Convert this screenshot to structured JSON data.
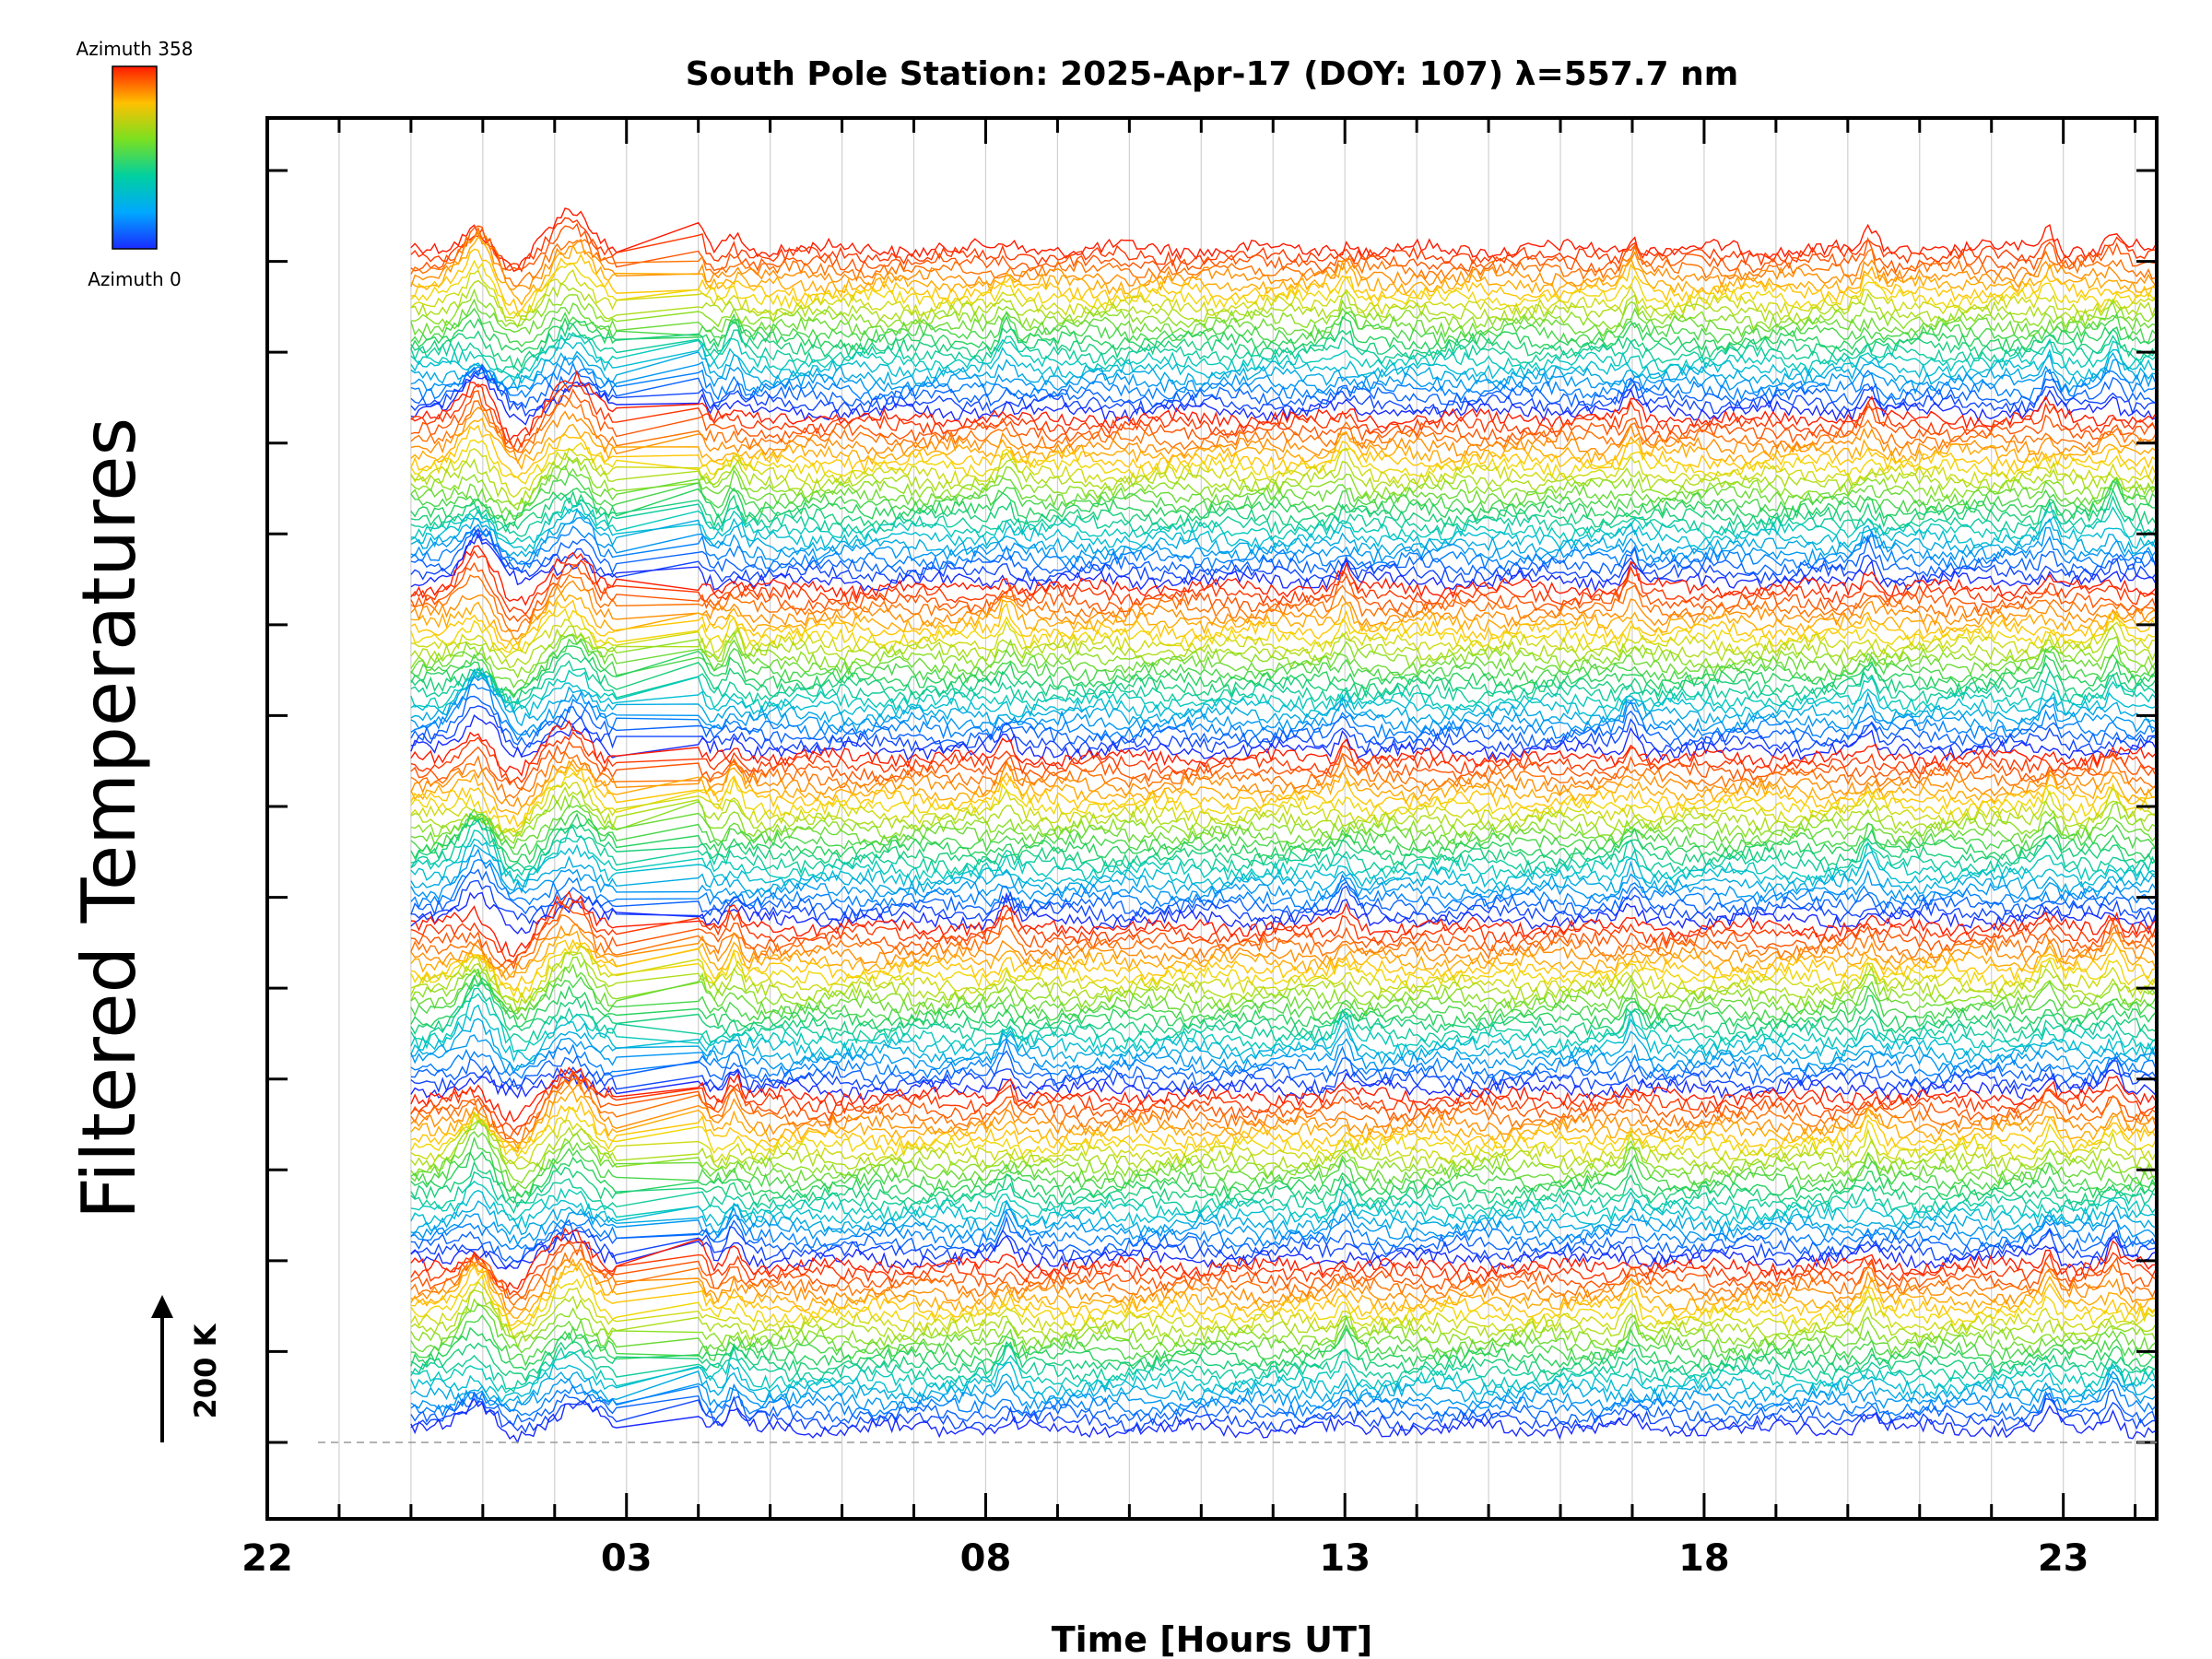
{
  "chart_data": {
    "type": "line",
    "title": "South Pole Station: 2025-Apr-17 (DOY: 107) λ=557.7 nm",
    "xlabel": "Time [Hours UT]",
    "ylabel": "Filtered Temperatures",
    "xlim": [
      22,
      48.3
    ],
    "x_tick_values": [
      22,
      27,
      32,
      37,
      42,
      47
    ],
    "x_tick_labels": [
      "22",
      "03",
      "08",
      "13",
      "18",
      "23"
    ],
    "x_minor_step": 1,
    "data_start_hour": 24,
    "data_end_hour": 48.3,
    "scale_bar_label": "200 K",
    "colorbar": {
      "top_label": "Azimuth 358",
      "bottom_label": "Azimuth 0",
      "min": 0,
      "max": 358
    },
    "stack": {
      "groups": 7,
      "traces_per_group": 24,
      "group_height_k": 1000,
      "right_ticks": 15
    },
    "features": {
      "spike_hours": [
        25.0,
        26.4,
        28.0,
        28.5,
        32.3,
        37.0,
        41.0,
        44.3,
        46.8,
        47.7
      ],
      "data_gap_hours": [
        26.9,
        28.0
      ]
    },
    "color_scale": [
      "#1a2bff",
      "#0088ff",
      "#00c8c8",
      "#22d060",
      "#90e020",
      "#ffd500",
      "#ff7a00",
      "#ff1a00"
    ]
  }
}
